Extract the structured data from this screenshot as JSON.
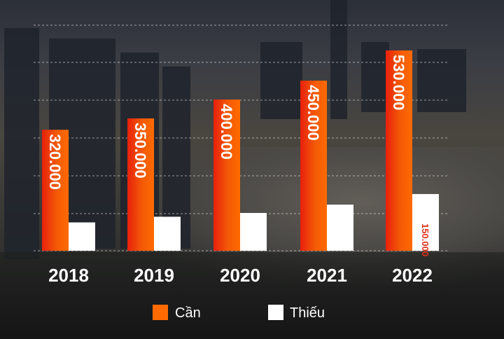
{
  "chart_data": {
    "type": "bar",
    "categories": [
      "2018",
      "2019",
      "2020",
      "2021",
      "2022"
    ],
    "series": [
      {
        "name": "Cần",
        "values": [
          320000,
          350000,
          400000,
          450000,
          530000
        ],
        "color": "#ff6a00",
        "color_start": "#e8200c"
      },
      {
        "name": "Thiếu",
        "values": [
          75000,
          90000,
          100000,
          122000,
          150000
        ],
        "color": "#ffffff"
      }
    ],
    "data_labels": [
      "320.000",
      "350.000",
      "400.000",
      "450.000",
      "530.000"
    ],
    "data_labels_thieu": [
      "",
      "",
      "",
      "",
      "150.000"
    ],
    "ylim": [
      0,
      530000
    ],
    "grid": true,
    "legend_position": "bottom-center"
  }
}
